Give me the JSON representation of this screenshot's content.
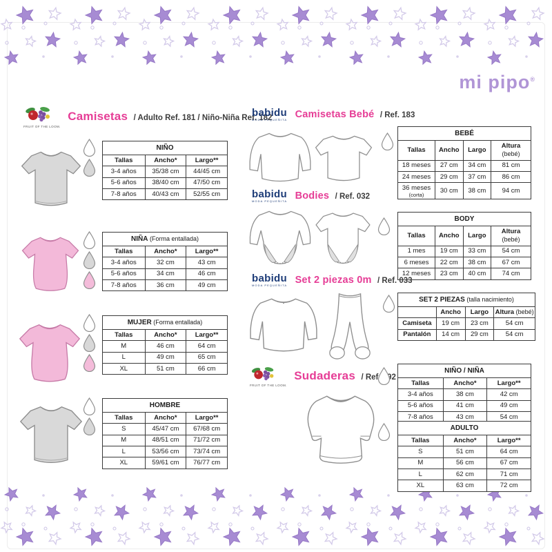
{
  "logo": {
    "text": "mi pipo",
    "reg": "®",
    "color": "#b095d6"
  },
  "colors": {
    "accent_pink": "#e63d96",
    "babidu_navy": "#1d3c78",
    "star_purple": "#a78bd3",
    "shirt_grey": "#d9d9d9",
    "shirt_pink": "#f3b9d9"
  },
  "sections": {
    "camisetas": {
      "brand": "FRUIT OF THE LOOM.",
      "title": "Camisetas",
      "subtitle": "/ Adulto Ref. 181 / Niño-Niña Ref. 182"
    },
    "camisetas_bebe": {
      "brand": "babidu",
      "brand_sub": "moda pequeñita",
      "title": "Camisetas Bebé",
      "ref": "/ Ref. 183"
    },
    "bodies": {
      "brand": "babidu",
      "brand_sub": "moda pequeñita",
      "title": "Bodies",
      "ref": "/ Ref. 032"
    },
    "set2piezas": {
      "brand": "babidu",
      "brand_sub": "moda pequeñita",
      "title": "Set 2 piezas 0m",
      "ref": "/ Ref. 033"
    },
    "sudaderas": {
      "brand": "FRUIT OF THE LOOM.",
      "title": "Sudaderas",
      "ref": "/ Ref. 192"
    }
  },
  "tables": {
    "nino": {
      "title": "NIÑO",
      "headers": [
        "Tallas",
        "Ancho*",
        "Largo**"
      ],
      "rows": [
        [
          "3-4 años",
          "35/38 cm",
          "44/45 cm"
        ],
        [
          "5-6 años",
          "38/40 cm",
          "47/50 cm"
        ],
        [
          "7-8 años",
          "40/43 cm",
          "52/55 cm"
        ]
      ]
    },
    "nina": {
      "title": "NIÑA",
      "note": "(Forma entallada)",
      "headers": [
        "Tallas",
        "Ancho*",
        "Largo**"
      ],
      "rows": [
        [
          "3-4 años",
          "32 cm",
          "43 cm"
        ],
        [
          "5-6 años",
          "34 cm",
          "46 cm"
        ],
        [
          "7-8 años",
          "36 cm",
          "49 cm"
        ]
      ]
    },
    "mujer": {
      "title": "MUJER",
      "note": "(Forma entallada)",
      "headers": [
        "Tallas",
        "Ancho*",
        "Largo**"
      ],
      "rows": [
        [
          "M",
          "46 cm",
          "64 cm"
        ],
        [
          "L",
          "49 cm",
          "65 cm"
        ],
        [
          "XL",
          "51 cm",
          "66 cm"
        ]
      ]
    },
    "hombre": {
      "title": "HOMBRE",
      "headers": [
        "Tallas",
        "Ancho*",
        "Largo**"
      ],
      "rows": [
        [
          "S",
          "45/47 cm",
          "67/68 cm"
        ],
        [
          "M",
          "48/51 cm",
          "71/72 cm"
        ],
        [
          "L",
          "53/56 cm",
          "73/74 cm"
        ],
        [
          "XL",
          "59/61 cm",
          "76/77 cm"
        ]
      ]
    },
    "bebe": {
      "title": "BEBÉ",
      "headers": [
        "Tallas",
        "Ancho",
        "Largo",
        "Altura (bebé)"
      ],
      "rows": [
        [
          "18 meses",
          "27 cm",
          "34 cm",
          "81 cm"
        ],
        [
          "24 meses",
          "29 cm",
          "37 cm",
          "86 cm"
        ],
        [
          "36 meses (corta)",
          "30 cm",
          "38 cm",
          "94 cm"
        ]
      ]
    },
    "body": {
      "title": "BODY",
      "headers": [
        "Tallas",
        "Ancho",
        "Largo",
        "Altura (bebé)"
      ],
      "rows": [
        [
          "1 mes",
          "19 cm",
          "33 cm",
          "54 cm"
        ],
        [
          "6 meses",
          "22 cm",
          "38 cm",
          "67 cm"
        ],
        [
          "12 meses",
          "23 cm",
          "40 cm",
          "74 cm"
        ]
      ]
    },
    "set2piezas": {
      "title": "SET 2 PIEZAS",
      "note": "(talla nacimiento)",
      "bold_first_col": true,
      "headers": [
        "",
        "Ancho",
        "Largo",
        "Altura (bebé)"
      ],
      "rows": [
        [
          "Camiseta",
          "19 cm",
          "23 cm",
          "54 cm"
        ],
        [
          "Pantalón",
          "14 cm",
          "29 cm",
          "54 cm"
        ]
      ]
    },
    "nino_nina": {
      "title": "NIÑO / NIÑA",
      "headers": [
        "Tallas",
        "Ancho*",
        "Largo**"
      ],
      "rows": [
        [
          "3-4 años",
          "38 cm",
          "42 cm"
        ],
        [
          "5-6 años",
          "41 cm",
          "49 cm"
        ],
        [
          "7-8 años",
          "43 cm",
          "54 cm"
        ]
      ]
    },
    "adulto": {
      "title": "ADULTO",
      "headers": [
        "Tallas",
        "Ancho*",
        "Largo**"
      ],
      "rows": [
        [
          "S",
          "51 cm",
          "64 cm"
        ],
        [
          "M",
          "56 cm",
          "67 cm"
        ],
        [
          "L",
          "62 cm",
          "71 cm"
        ],
        [
          "XL",
          "63 cm",
          "72 cm"
        ]
      ]
    }
  },
  "drops": {
    "nino": [
      "white",
      "grey"
    ],
    "nina": [
      "white",
      "grey",
      "pink"
    ],
    "mujer": [
      "white",
      "grey",
      "pink"
    ],
    "hombre": [
      "white",
      "grey"
    ],
    "bebe": [
      "white"
    ],
    "body": [
      "white"
    ],
    "set2piezas": [
      "white"
    ],
    "sudaderas_nino": [
      "white"
    ],
    "sudaderas_adulto": [
      "white"
    ]
  }
}
